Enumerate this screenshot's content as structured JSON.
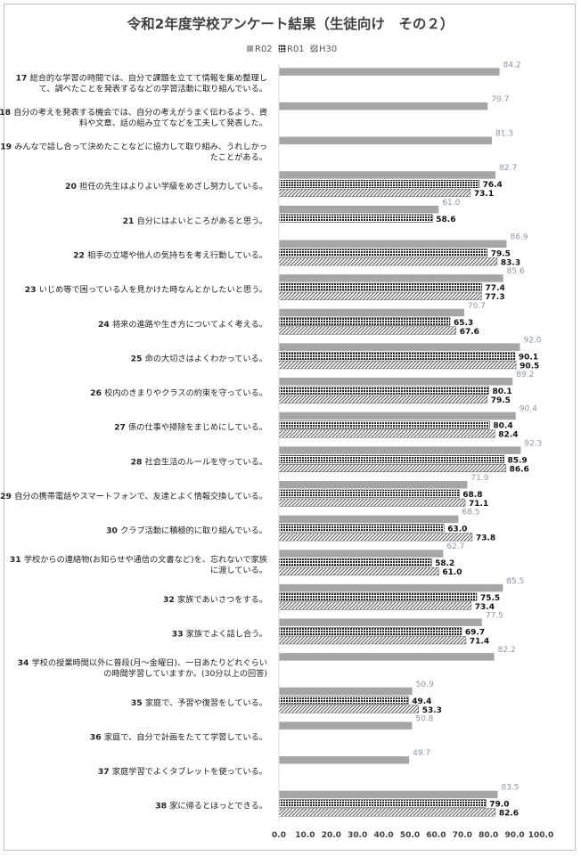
{
  "chart_data": {
    "type": "bar",
    "orientation": "horizontal",
    "title": "令和2年度学校アンケート結果（生徒向け　その２）",
    "legend_position": "top-center",
    "xlim": [
      0,
      100
    ],
    "xticks": [
      "0.0",
      "10.0",
      "20.0",
      "30.0",
      "40.0",
      "50.0",
      "60.0",
      "70.0",
      "80.0",
      "90.0",
      "100.0"
    ],
    "grid": false,
    "series": [
      {
        "name": "R02",
        "color": "#a6a6a6",
        "pattern": "solid"
      },
      {
        "name": "R01",
        "color": "#262626",
        "pattern": "dots"
      },
      {
        "name": "H30",
        "color": "#595959",
        "pattern": "diagonal"
      }
    ],
    "categories": [
      {
        "num": "17",
        "lines": [
          "総合的な学習の時間では、自分で課題を立てて情報を集め整理し",
          "て、調べたことを発表するなどの学習活動に取り組んでいる。"
        ],
        "values": [
          84.2,
          null,
          null
        ]
      },
      {
        "num": "18",
        "lines": [
          "自分の考えを発表する機会では、自分の考えがうまく伝わるよう、資",
          "料や文章、話の組み立てなどを工夫して発表した。"
        ],
        "values": [
          79.7,
          null,
          null
        ]
      },
      {
        "num": "19",
        "lines": [
          "みんなで話し合って決めたことなどに協力して取り組み、うれしかっ",
          "たことがある。"
        ],
        "values": [
          81.3,
          null,
          null
        ]
      },
      {
        "num": "20",
        "lines": [
          "担任の先生はよりよい学級をめざし努力している。"
        ],
        "values": [
          82.7,
          76.4,
          73.1
        ]
      },
      {
        "num": "21",
        "lines": [
          "自分にはよいところがあると思う。"
        ],
        "values": [
          61.0,
          58.6,
          null
        ]
      },
      {
        "num": "22",
        "lines": [
          "相手の立場や他人の気持ちを考え行動している。"
        ],
        "values": [
          86.9,
          79.5,
          83.3
        ]
      },
      {
        "num": "23",
        "lines": [
          "いじめ等で困っている人を見かけた時なんとかしたいと思う。"
        ],
        "values": [
          85.6,
          77.4,
          77.3
        ]
      },
      {
        "num": "24",
        "lines": [
          "将来の進路や生き方についてよく考える。"
        ],
        "values": [
          70.7,
          65.3,
          67.6
        ]
      },
      {
        "num": "25",
        "lines": [
          "命の大切さはよくわかっている。"
        ],
        "values": [
          92.0,
          90.1,
          90.5
        ]
      },
      {
        "num": "26",
        "lines": [
          "校内のきまりやクラスの約束を守っている。"
        ],
        "values": [
          89.2,
          80.1,
          79.5
        ]
      },
      {
        "num": "27",
        "lines": [
          "係の仕事や掃除をまじめにしている。"
        ],
        "values": [
          90.4,
          80.4,
          82.4
        ]
      },
      {
        "num": "28",
        "lines": [
          "社会生活のルールを守っている。"
        ],
        "values": [
          92.3,
          85.9,
          86.6
        ]
      },
      {
        "num": "29",
        "lines": [
          "自分の携帯電話やスマートフォンで、友達とよく情報交換している。"
        ],
        "values": [
          71.9,
          68.8,
          71.1
        ]
      },
      {
        "num": "30",
        "lines": [
          "クラブ活動に積極的に取り組んでいる。"
        ],
        "values": [
          68.5,
          63.0,
          73.8
        ]
      },
      {
        "num": "31",
        "lines": [
          "学校からの連絡物(お知らせや通信の文書など)を、忘れないで家族",
          "に渡している。"
        ],
        "values": [
          62.7,
          58.2,
          61.0
        ]
      },
      {
        "num": "32",
        "lines": [
          "家族であいさつをする。"
        ],
        "values": [
          85.5,
          75.5,
          73.4
        ]
      },
      {
        "num": "33",
        "lines": [
          "家族でよく話し合う。"
        ],
        "values": [
          77.5,
          69.7,
          71.4
        ]
      },
      {
        "num": "34",
        "lines": [
          "学校の授業時間以外に普段(月～金曜日)、一日あたりどれぐらい",
          "の時間学習していますか。(30分以上の回答)"
        ],
        "values": [
          82.2,
          null,
          null
        ]
      },
      {
        "num": "35",
        "lines": [
          "家庭で、予習や復習をしている。"
        ],
        "values": [
          50.9,
          49.4,
          53.3
        ]
      },
      {
        "num": "36",
        "lines": [
          "家庭で、自分で計画をたてて学習している。"
        ],
        "values": [
          50.8,
          null,
          null
        ]
      },
      {
        "num": "37",
        "lines": [
          "家庭学習でよくタブレットを使っている。"
        ],
        "values": [
          49.7,
          null,
          null
        ]
      },
      {
        "num": "38",
        "lines": [
          "家に帰るとほっとできる。"
        ],
        "values": [
          83.5,
          79.0,
          82.6
        ]
      }
    ]
  }
}
